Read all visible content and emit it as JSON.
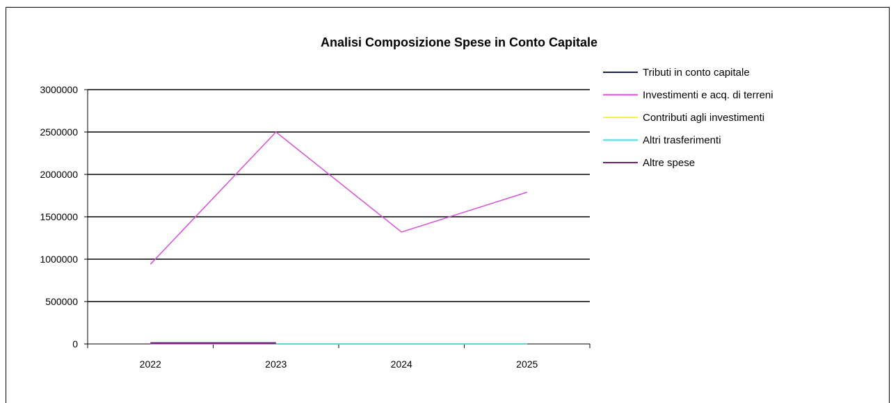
{
  "chart_data": {
    "type": "line",
    "title": "Analisi Composizione Spese in Conto Capitale",
    "categories": [
      "2022",
      "2023",
      "2024",
      "2025"
    ],
    "ylim": [
      0,
      3000000
    ],
    "yticks": [
      0,
      500000,
      1000000,
      1500000,
      2000000,
      2500000,
      3000000
    ],
    "ytick_labels": [
      "0",
      "500000",
      "1000000",
      "1500000",
      "2000000",
      "2500000",
      "3000000"
    ],
    "grid": true,
    "legend_position": "right",
    "series": [
      {
        "name": "Tributi in conto capitale",
        "color": "#1a1a5e",
        "values": [
          0,
          0,
          0,
          0
        ]
      },
      {
        "name": "Investimenti e acq. di terreni",
        "color": "#d94fd9",
        "values": [
          940000,
          2500000,
          1320000,
          1790000
        ]
      },
      {
        "name": "Contributi agli investimenti",
        "color": "#f2f24a",
        "values": [
          0,
          0,
          0,
          0
        ]
      },
      {
        "name": "Altri trasferimenti",
        "color": "#40e0e0",
        "values": [
          0,
          0,
          0,
          0
        ]
      },
      {
        "name": "Altre spese",
        "color": "#7a1f7a",
        "values": [
          10000,
          10000,
          0,
          0
        ]
      }
    ]
  }
}
